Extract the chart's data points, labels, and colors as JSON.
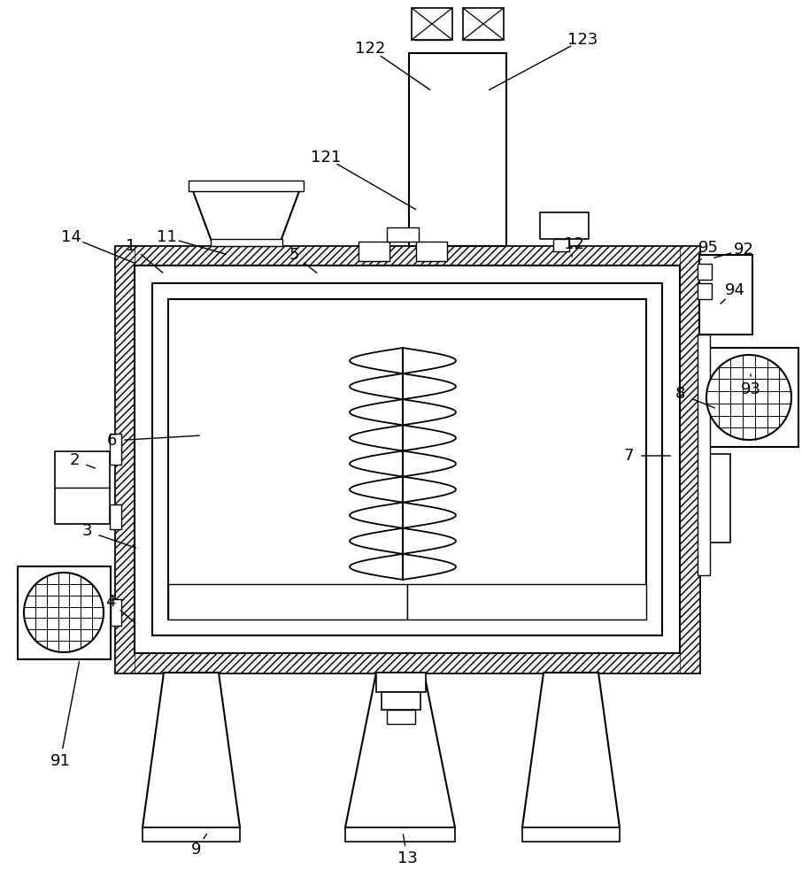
{
  "bg_color": "#ffffff",
  "lc": "#000000",
  "label_fontsize": 13,
  "labels_coords": {
    "1": [
      0.148,
      0.72,
      0.18,
      0.74
    ],
    "2": [
      0.085,
      0.54,
      0.108,
      0.55
    ],
    "3": [
      0.1,
      0.62,
      0.155,
      0.645
    ],
    "4": [
      0.125,
      0.695,
      0.152,
      0.71
    ],
    "5": [
      0.335,
      0.72,
      0.355,
      0.74
    ],
    "6": [
      0.128,
      0.5,
      0.23,
      0.49
    ],
    "7": [
      0.71,
      0.53,
      0.76,
      0.535
    ],
    "8": [
      0.77,
      0.45,
      0.81,
      0.46
    ],
    "9": [
      0.222,
      0.07,
      0.23,
      0.155
    ],
    "11": [
      0.188,
      0.735,
      0.248,
      0.76
    ],
    "12": [
      0.652,
      0.715,
      0.648,
      0.725
    ],
    "13": [
      0.46,
      0.065,
      0.462,
      0.13
    ],
    "14": [
      0.082,
      0.73,
      0.152,
      0.71
    ],
    "91": [
      0.068,
      0.19,
      0.088,
      0.358
    ],
    "92": [
      0.838,
      0.72,
      0.798,
      0.726
    ],
    "93": [
      0.848,
      0.43,
      0.858,
      0.418
    ],
    "94": [
      0.828,
      0.68,
      0.808,
      0.7
    ],
    "95": [
      0.8,
      0.725,
      0.782,
      0.725
    ],
    "121": [
      0.368,
      0.82,
      0.468,
      0.772
    ],
    "122": [
      0.418,
      0.95,
      0.487,
      0.91
    ],
    "123": [
      0.66,
      0.956,
      0.551,
      0.91
    ]
  }
}
